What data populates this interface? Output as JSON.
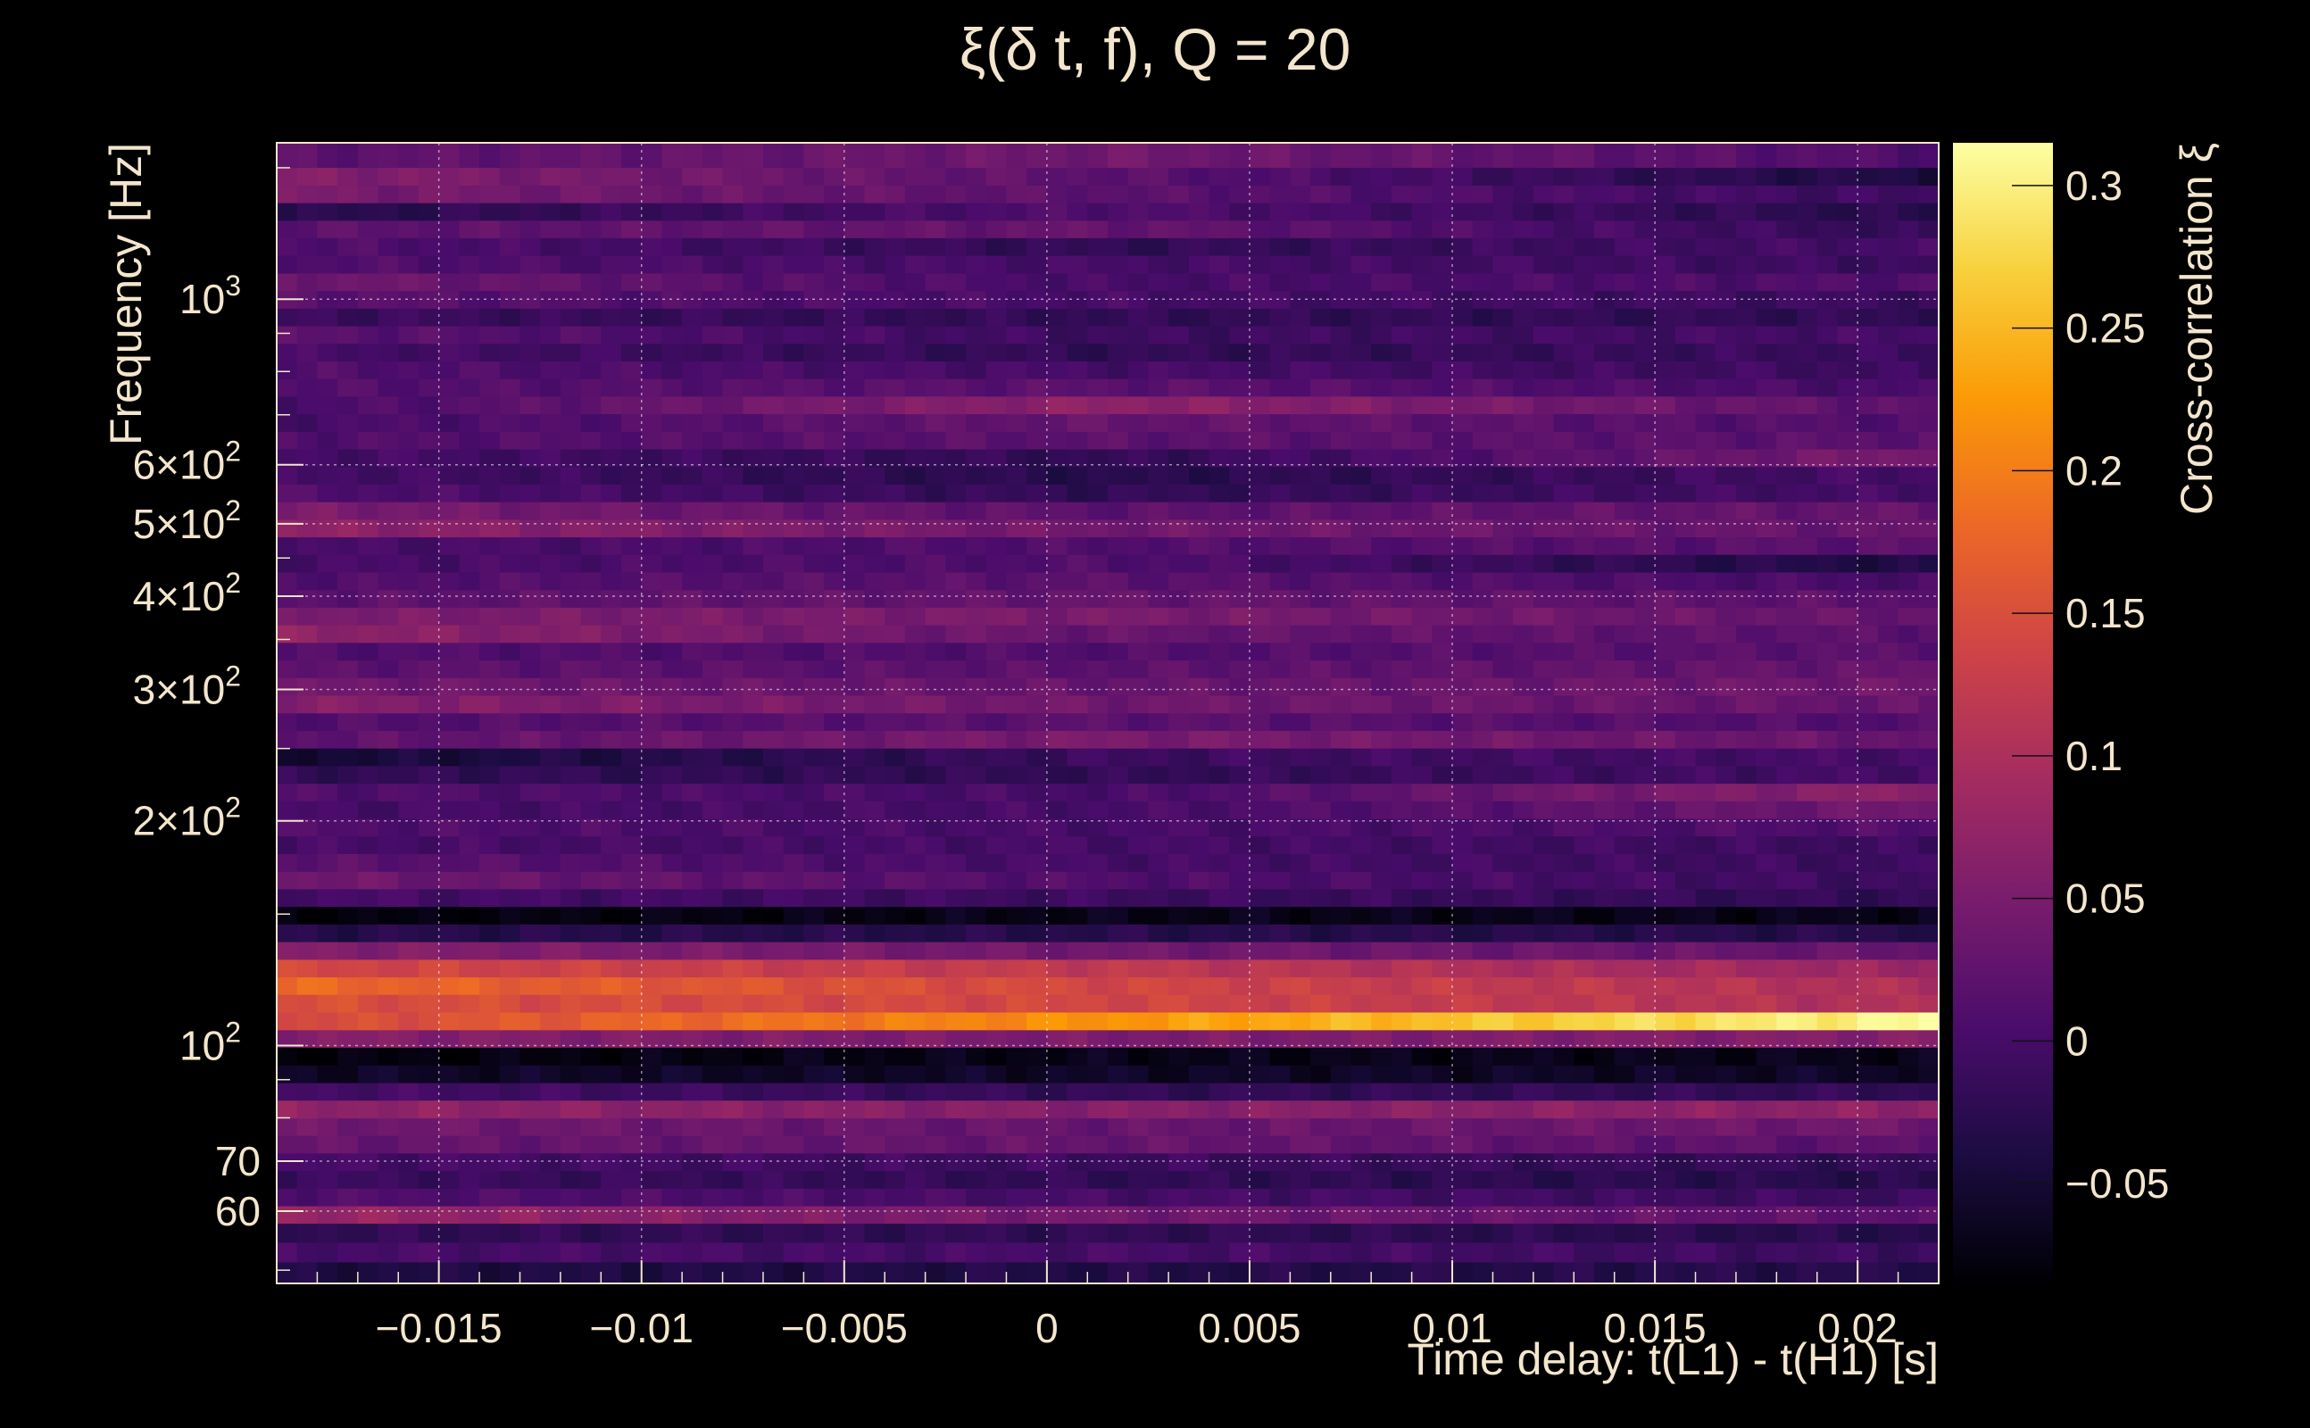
{
  "chart_data": {
    "type": "heatmap",
    "title": "ξ(δ t, f), Q = 20",
    "xlabel": "Time delay: t(L1) - t(H1) [s]",
    "ylabel": "Frequency [Hz]",
    "colorbar_label": "Cross-correlation ξ",
    "xlim": [
      -0.019,
      0.022
    ],
    "ylim": [
      48,
      1620
    ],
    "y_scale": "log",
    "grid": true,
    "colormap": [
      "#000004",
      "#1b0c41",
      "#4a0c6b",
      "#781c6d",
      "#a52c60",
      "#cf4446",
      "#ed6925",
      "#fb9b06",
      "#f7d13d",
      "#fcffa4"
    ],
    "x_ticks": [
      {
        "value": -0.015,
        "label": "−0.015"
      },
      {
        "value": -0.01,
        "label": "−0.01"
      },
      {
        "value": -0.005,
        "label": "−0.005"
      },
      {
        "value": 0,
        "label": "0"
      },
      {
        "value": 0.005,
        "label": "0.005"
      },
      {
        "value": 0.01,
        "label": "0.01"
      },
      {
        "value": 0.015,
        "label": "0.015"
      },
      {
        "value": 0.02,
        "label": "0.02"
      }
    ],
    "y_ticks": [
      {
        "value": 60,
        "label": "60"
      },
      {
        "value": 70,
        "label": "70"
      },
      {
        "value": 100,
        "label": "10",
        "sup": "2"
      },
      {
        "value": 200,
        "label": "2×10",
        "sup": "2"
      },
      {
        "value": 300,
        "label": "3×10",
        "sup": "2"
      },
      {
        "value": 400,
        "label": "4×10",
        "sup": "2"
      },
      {
        "value": 500,
        "label": "5×10",
        "sup": "2"
      },
      {
        "value": 600,
        "label": "6×10",
        "sup": "2"
      },
      {
        "value": 1000,
        "label": "10",
        "sup": "3"
      }
    ],
    "colorbar": {
      "range": [
        -0.085,
        0.315
      ],
      "ticks": [
        {
          "value": -0.05,
          "label": "−0.05"
        },
        {
          "value": 0,
          "label": "0"
        },
        {
          "value": 0.05,
          "label": "0.05"
        },
        {
          "value": 0.1,
          "label": "0.1"
        },
        {
          "value": 0.15,
          "label": "0.15"
        },
        {
          "value": 0.2,
          "label": "0.2"
        },
        {
          "value": 0.25,
          "label": "0.25"
        },
        {
          "value": 0.3,
          "label": "0.3"
        }
      ]
    },
    "freq_bins": [
      48,
      51.3,
      54.5,
      57.8,
      61,
      64.4,
      68,
      71.8,
      75.8,
      80,
      84.5,
      89.2,
      94.2,
      99.5,
      105,
      110.9,
      117.1,
      123.6,
      130.5,
      137.8,
      145.5,
      153.6,
      162.2,
      171.2,
      180.8,
      190.9,
      201.5,
      212.8,
      224.6,
      237.2,
      250.4,
      264.4,
      279.1,
      294.7,
      311.2,
      328.5,
      346.9,
      366.2,
      386.7,
      408.2,
      431,
      455.1,
      480.4,
      507.2,
      535.5,
      565.4,
      596.9,
      630.2,
      665.3,
      702.4,
      741.6,
      783,
      826.6,
      872.7,
      921.4,
      972.8,
      1027,
      1084,
      1145,
      1209,
      1276,
      1347,
      1422,
      1502,
      1620
    ],
    "band_profile": [
      {
        "f_min": 48,
        "f_max": 1620,
        "xi_start": 0.0,
        "xi_end": 0.0
      }
    ],
    "rows": [
      {
        "f": 49.6,
        "xi": [
          -0.04,
          -0.035,
          -0.03
        ]
      },
      {
        "f": 52.9,
        "xi": [
          0.0,
          0.0,
          -0.01
        ]
      },
      {
        "f": 56.1,
        "xi": [
          -0.02,
          -0.02,
          -0.03
        ]
      },
      {
        "f": 59.4,
        "xi": [
          0.08,
          0.04,
          0.02
        ]
      },
      {
        "f": 62.7,
        "xi": [
          0.01,
          0.0,
          -0.01
        ]
      },
      {
        "f": 66.2,
        "xi": [
          -0.01,
          -0.02,
          -0.03
        ]
      },
      {
        "f": 69.9,
        "xi": [
          0.0,
          -0.01,
          -0.02
        ]
      },
      {
        "f": 73.8,
        "xi": [
          0.03,
          0.03,
          0.02
        ]
      },
      {
        "f": 77.9,
        "xi": [
          0.04,
          0.03,
          0.04
        ]
      },
      {
        "f": 82.3,
        "xi": [
          0.07,
          0.06,
          0.07
        ]
      },
      {
        "f": 86.8,
        "xi": [
          0.0,
          -0.02,
          -0.02
        ]
      },
      {
        "f": 91.7,
        "xi": [
          -0.06,
          -0.06,
          -0.06
        ]
      },
      {
        "f": 96.9,
        "xi": [
          -0.08,
          -0.07,
          -0.07
        ]
      },
      {
        "f": 102.3,
        "xi": [
          0.06,
          0.05,
          0.06
        ]
      },
      {
        "f": 108,
        "xi": [
          0.14,
          0.22,
          0.31
        ]
      },
      {
        "f": 114,
        "xi": [
          0.15,
          0.14,
          0.1
        ]
      },
      {
        "f": 120.4,
        "xi": [
          0.18,
          0.14,
          0.1
        ]
      },
      {
        "f": 127,
        "xi": [
          0.14,
          0.12,
          0.08
        ]
      },
      {
        "f": 134.2,
        "xi": [
          0.06,
          0.04,
          0.03
        ]
      },
      {
        "f": 141.6,
        "xi": [
          -0.03,
          -0.03,
          -0.03
        ]
      },
      {
        "f": 149.5,
        "xi": [
          -0.08,
          -0.07,
          -0.07
        ]
      },
      {
        "f": 157.9,
        "xi": [
          0.0,
          -0.01,
          -0.02
        ]
      },
      {
        "f": 166.7,
        "xi": [
          0.04,
          0.01,
          -0.01
        ]
      },
      {
        "f": 176,
        "xi": [
          0.02,
          0.0,
          -0.01
        ]
      },
      {
        "f": 185.8,
        "xi": [
          0.0,
          0.0,
          -0.01
        ]
      },
      {
        "f": 196.2,
        "xi": [
          0.01,
          0.0,
          0.01
        ]
      },
      {
        "f": 207.1,
        "xi": [
          0.0,
          0.0,
          0.04
        ]
      },
      {
        "f": 218.7,
        "xi": [
          0.01,
          0.0,
          0.07
        ]
      },
      {
        "f": 230.9,
        "xi": [
          -0.02,
          -0.02,
          0.0
        ]
      },
      {
        "f": 243.8,
        "xi": [
          -0.05,
          -0.01,
          0.0
        ]
      },
      {
        "f": 257.4,
        "xi": [
          0.02,
          0.05,
          0.03
        ]
      },
      {
        "f": 271.7,
        "xi": [
          0.01,
          0.02,
          0.01
        ]
      },
      {
        "f": 286.9,
        "xi": [
          0.06,
          0.04,
          0.03
        ]
      },
      {
        "f": 302.9,
        "xi": [
          0.04,
          0.03,
          0.04
        ]
      },
      {
        "f": 319.8,
        "xi": [
          0.02,
          0.02,
          0.03
        ]
      },
      {
        "f": 337.7,
        "xi": [
          0.01,
          0.01,
          0.02
        ]
      },
      {
        "f": 356.5,
        "xi": [
          0.07,
          0.03,
          0.02
        ]
      },
      {
        "f": 376.4,
        "xi": [
          0.05,
          0.05,
          0.03
        ]
      },
      {
        "f": 397.4,
        "xi": [
          0.02,
          0.03,
          0.02
        ]
      },
      {
        "f": 419.5,
        "xi": [
          0.01,
          0.02,
          0.0
        ]
      },
      {
        "f": 443,
        "xi": [
          0.0,
          0.01,
          -0.04
        ]
      },
      {
        "f": 467.7,
        "xi": [
          0.0,
          0.01,
          0.02
        ]
      },
      {
        "f": 493.8,
        "xi": [
          0.07,
          0.04,
          0.03
        ]
      },
      {
        "f": 521.3,
        "xi": [
          0.05,
          0.02,
          0.03
        ]
      },
      {
        "f": 550.4,
        "xi": [
          0.01,
          -0.02,
          0.0
        ]
      },
      {
        "f": 581.1,
        "xi": [
          0.0,
          -0.03,
          0.0
        ]
      },
      {
        "f": 613.5,
        "xi": [
          0.0,
          -0.02,
          0.05
        ]
      },
      {
        "f": 647.7,
        "xi": [
          0.01,
          0.02,
          0.02
        ]
      },
      {
        "f": 683.8,
        "xi": [
          0.0,
          0.03,
          0.01
        ]
      },
      {
        "f": 722,
        "xi": [
          0.0,
          0.07,
          0.02
        ]
      },
      {
        "f": 762.3,
        "xi": [
          0.01,
          0.02,
          0.0
        ]
      },
      {
        "f": 804.8,
        "xi": [
          0.01,
          0.0,
          -0.01
        ]
      },
      {
        "f": 849.6,
        "xi": [
          0.0,
          -0.02,
          -0.01
        ]
      },
      {
        "f": 897,
        "xi": [
          0.02,
          -0.01,
          0.0
        ]
      },
      {
        "f": 947.1,
        "xi": [
          -0.01,
          -0.02,
          -0.02
        ]
      },
      {
        "f": 999.9,
        "xi": [
          0.02,
          0.0,
          -0.01
        ]
      },
      {
        "f": 1055.5,
        "xi": [
          0.04,
          0.0,
          0.01
        ]
      },
      {
        "f": 1114.5,
        "xi": [
          0.01,
          0.0,
          -0.01
        ]
      },
      {
        "f": 1177,
        "xi": [
          0.01,
          -0.02,
          0.0
        ]
      },
      {
        "f": 1242.5,
        "xi": [
          0.02,
          0.03,
          -0.02
        ]
      },
      {
        "f": 1311.5,
        "xi": [
          -0.03,
          0.01,
          -0.03
        ]
      },
      {
        "f": 1384.5,
        "xi": [
          0.05,
          0.02,
          -0.01
        ]
      },
      {
        "f": 1462,
        "xi": [
          0.06,
          0.02,
          -0.04
        ]
      },
      {
        "f": 1561,
        "xi": [
          0.02,
          0.04,
          0.01
        ]
      }
    ],
    "time_bins": 82
  }
}
